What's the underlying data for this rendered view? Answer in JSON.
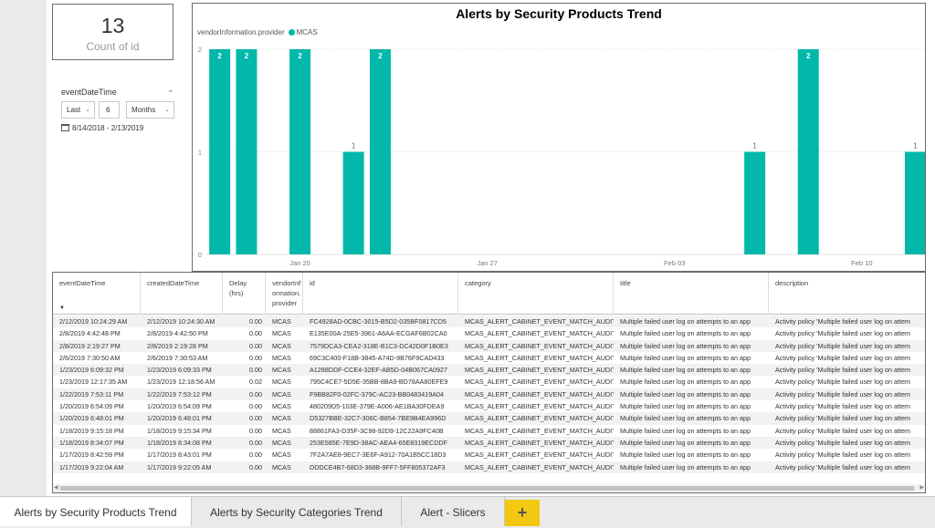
{
  "card": {
    "value": "13",
    "label": "Count of id"
  },
  "slicer": {
    "title": "eventDateTime",
    "relative": "Last",
    "count": "6",
    "unit": "Months",
    "range": "8/14/2018 - 2/13/2019"
  },
  "chart": {
    "title": "Alerts by Security Products Trend",
    "legend_title": "vendorInformation.provider",
    "legend_item": "MCAS",
    "color": "#01b8aa"
  },
  "chart_data": {
    "type": "bar",
    "title": "Alerts by Security Products Trend",
    "legend": {
      "title": "vendorInformation.provider",
      "entries": [
        "MCAS"
      ],
      "placement": "top-left"
    },
    "x_range": [
      "2019-01-17",
      "2019-02-13"
    ],
    "x_ticks": [
      "Jan 20",
      "Jan 27",
      "Feb 03",
      "Feb 10"
    ],
    "ylim": [
      0,
      2
    ],
    "y_ticks": [
      "0",
      "1",
      "2"
    ],
    "grid": true,
    "series": [
      {
        "name": "MCAS",
        "points": [
          {
            "x": "2019-01-17",
            "y": 2
          },
          {
            "x": "2019-01-18",
            "y": 2
          },
          {
            "x": "2019-01-20",
            "y": 2
          },
          {
            "x": "2019-01-22",
            "y": 1
          },
          {
            "x": "2019-01-23",
            "y": 2
          },
          {
            "x": "2019-02-06",
            "y": 1
          },
          {
            "x": "2019-02-08",
            "y": 2
          },
          {
            "x": "2019-02-12",
            "y": 1
          }
        ]
      }
    ]
  },
  "table": {
    "headers": [
      "eventDateTime",
      "createdDateTime",
      "Delay (hrs)",
      "vendorInf ormation. provider",
      "id",
      "category",
      "title",
      "description"
    ],
    "rows": [
      [
        "2/12/2019 10:24:29 AM",
        "2/12/2019 10:24:30 AM",
        "0.00",
        "MCAS",
        "FC4928AD-0CBC-3015-B5D2-035BF0817CD5",
        "MCAS_ALERT_CABINET_EVENT_MATCH_AUDIT",
        "Multiple failed user log on attempts to an app",
        "Activity policy 'Multiple failed user log on attem"
      ],
      [
        "2/8/2019 4:42:48 PM",
        "2/8/2019 4:42:50 PM",
        "0.00",
        "MCAS",
        "E135E00A-25E5-3961-A6AA-ECGAF6B02CA0",
        "MCAS_ALERT_CABINET_EVENT_MATCH_AUDIT",
        "Multiple failed user log on attempts to an app",
        "Activity policy 'Multiple failed user log on attem"
      ],
      [
        "2/8/2019 2:19:27 PM",
        "2/8/2019 2:19:28 PM",
        "0.00",
        "MCAS",
        "7579DCA3-CEA2-318E-B1C3-DC42D0F1B0E3",
        "MCAS_ALERT_CABINET_EVENT_MATCH_AUDIT",
        "Multiple failed user log on attempts to an app",
        "Activity policy 'Multiple failed user log on attem"
      ],
      [
        "2/6/2019 7:30:50 AM",
        "2/6/2019 7:30:53 AM",
        "0.00",
        "MCAS",
        "69C3C400-F18B-3845-A74D-9B76F9CAD433",
        "MCAS_ALERT_CABINET_EVENT_MATCH_AUDIT",
        "Multiple failed user log on attempts to an app",
        "Activity policy 'Multiple failed user log on attem"
      ],
      [
        "1/23/2019 6:09:32 PM",
        "1/23/2019 6:09:33 PM",
        "0.00",
        "MCAS",
        "A1288DDF-CCE4-32EF-AB5D-04B067CA0927",
        "MCAS_ALERT_CABINET_EVENT_MATCH_AUDIT",
        "Multiple failed user log on attempts to an app",
        "Activity policy 'Multiple failed user log on attem"
      ],
      [
        "1/23/2019 12:17:35 AM",
        "1/23/2019 12:18:56 AM",
        "0.02",
        "MCAS",
        "795C4CE7-5D5E-35BB-8BA9-BD78AA80EFE9",
        "MCAS_ALERT_CABINET_EVENT_MATCH_AUDIT",
        "Multiple failed user log on attempts to an app",
        "Activity policy 'Multiple failed user log on attem"
      ],
      [
        "1/22/2019 7:53:11 PM",
        "1/22/2019 7:53:12 PM",
        "0.00",
        "MCAS",
        "F9BB82F0-02FC-379C-AC23-BB0483419A04",
        "MCAS_ALERT_CABINET_EVENT_MATCH_AUDIT",
        "Multiple failed user log on attempts to an app",
        "Activity policy 'Multiple failed user log on attem"
      ],
      [
        "1/20/2019 6:54:09 PM",
        "1/20/2019 6:54:09 PM",
        "0.00",
        "MCAS",
        "480209D5-103E-379E-A006-AE1BA30FDEA9",
        "MCAS_ALERT_CABINET_EVENT_MATCH_AUDIT",
        "Multiple failed user log on attempts to an app",
        "Activity policy 'Multiple failed user log on attem"
      ],
      [
        "1/20/2019 6:48:01 PM",
        "1/20/2019 6:48:01 PM",
        "0.00",
        "MCAS",
        "D5327BBE-32C7-306C-B854-7BE9B4EA996D",
        "MCAS_ALERT_CABINET_EVENT_MATCH_AUDIT",
        "Multiple failed user log on attempts to an app",
        "Activity policy 'Multiple failed user log on attem"
      ],
      [
        "1/18/2019 9:15:18 PM",
        "1/18/2019 9:15:34 PM",
        "0.00",
        "MCAS",
        "88861FA3-D35F-3C98-92D9-12C22A9FC40B",
        "MCAS_ALERT_CABINET_EVENT_MATCH_AUDIT",
        "Multiple failed user log on attempts to an app",
        "Activity policy 'Multiple failed user log on attem"
      ],
      [
        "1/18/2019 8:34:07 PM",
        "1/18/2019 8:34:08 PM",
        "0.00",
        "MCAS",
        "253E585E-7E9D-38AC-AEA4-65E8319ECDDF",
        "MCAS_ALERT_CABINET_EVENT_MATCH_AUDIT",
        "Multiple failed user log on attempts to an app",
        "Activity policy 'Multiple failed user log on attem"
      ],
      [
        "1/17/2019 8:42:59 PM",
        "1/17/2019 8:43:01 PM",
        "0.00",
        "MCAS",
        "7F2A7AE8-9EC7-3E6F-A912-70A1B5CC18D3",
        "MCAS_ALERT_CABINET_EVENT_MATCH_AUDIT",
        "Multiple failed user log on attempts to an app",
        "Activity policy 'Multiple failed user log on attem"
      ],
      [
        "1/17/2019 9:22:04 AM",
        "1/17/2019 9:22:05 AM",
        "0.00",
        "MCAS",
        "DDDCE4B7-68D3-368B-9FF7-5FF805372AF3",
        "MCAS_ALERT_CABINET_EVENT_MATCH_AUDIT",
        "Multiple failed user log on attempts to an app",
        "Activity policy 'Multiple failed user log on attem"
      ]
    ]
  },
  "tabs": [
    {
      "label": "Alerts by Security Products Trend",
      "active": true
    },
    {
      "label": "Alerts by Security Categories Trend",
      "active": false
    },
    {
      "label": "Alert - Slicers",
      "active": false
    }
  ],
  "add_tab_label": "+"
}
